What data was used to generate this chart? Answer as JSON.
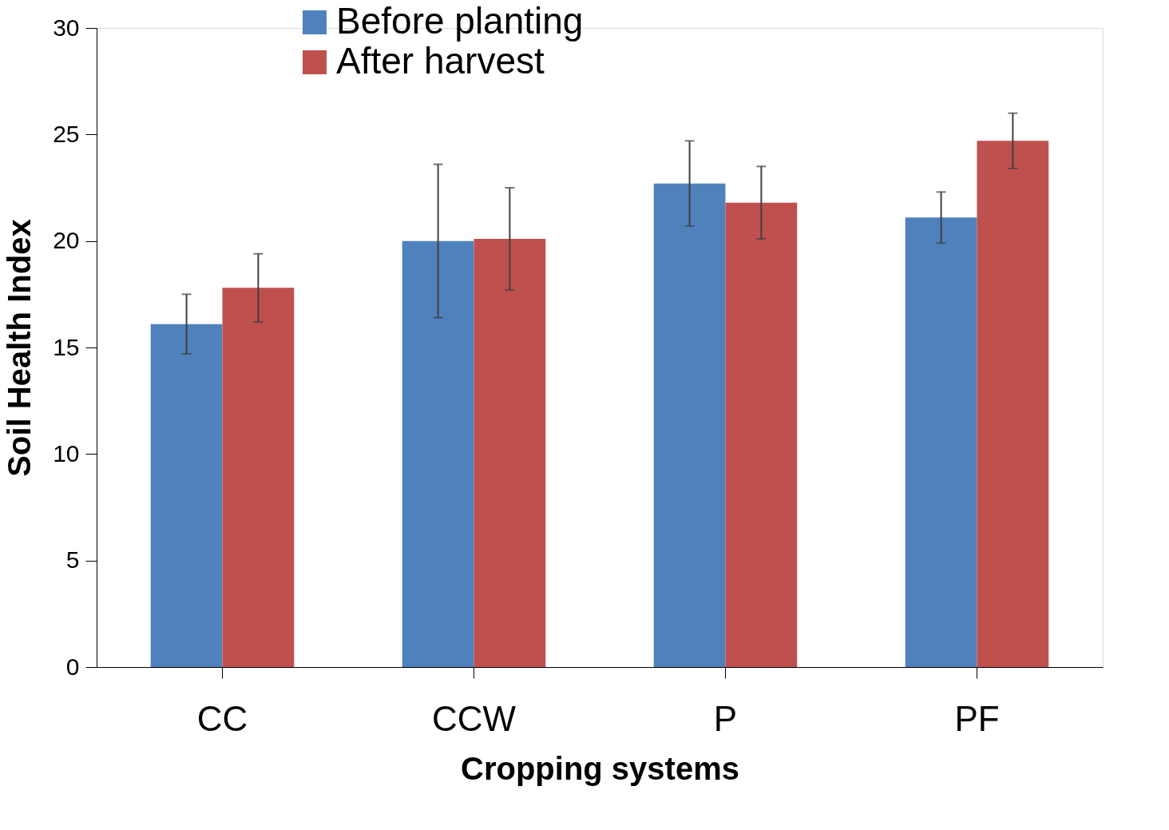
{
  "chart_data": {
    "type": "bar",
    "xlabel": "Cropping systems",
    "ylabel": "Soil Health Index",
    "categories": [
      "CC",
      "CCW",
      "P",
      "PF"
    ],
    "series": [
      {
        "name": "Before planting",
        "color": "#4f81bd",
        "values": [
          16.1,
          20.0,
          22.7,
          21.1
        ],
        "errors": [
          1.4,
          3.6,
          2.0,
          1.2
        ]
      },
      {
        "name": "After harvest",
        "color": "#c0504d",
        "values": [
          17.8,
          20.1,
          21.8,
          24.7
        ],
        "errors": [
          1.6,
          2.4,
          1.7,
          1.3
        ]
      }
    ],
    "ylim": [
      0,
      30
    ],
    "yticks": [
      0,
      5,
      10,
      15,
      20,
      25,
      30
    ],
    "grid": false,
    "legend": "top left"
  }
}
